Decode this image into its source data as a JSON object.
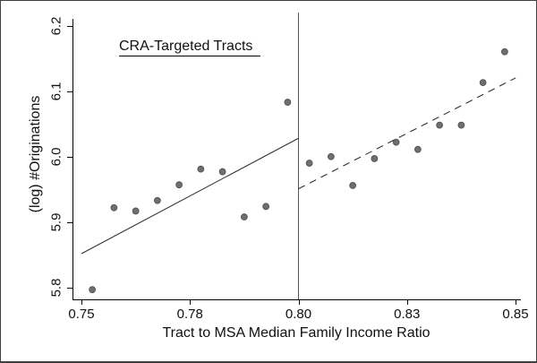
{
  "figure": {
    "annotation": "CRA-Targeted Tracts",
    "x_axis": {
      "label": "Tract to MSA Median Family Income Ratio"
    },
    "y_axis": {
      "label": "(log) #Originations"
    }
  },
  "chart_data": {
    "type": "scatter",
    "title": "CRA-Targeted Tracts",
    "xlabel": "Tract to MSA Median Family Income Ratio",
    "ylabel": "(log) #Originations",
    "xlim": [
      0.748,
      0.851
    ],
    "ylim": [
      5.78,
      6.22
    ],
    "x_ticks": [
      0.75,
      0.775,
      0.8,
      0.825,
      0.85
    ],
    "x_tick_labels": [
      "0.75",
      "0.78",
      "0.80",
      "0.83",
      "0.85"
    ],
    "y_ticks": [
      5.8,
      5.9,
      6.0,
      6.1,
      6.2
    ],
    "y_tick_labels": [
      "5.8",
      "5.9",
      "6.0",
      "6.1",
      "6.2"
    ],
    "grid": "off",
    "legend": "none",
    "cutoff_line_x": 0.8,
    "series": [
      {
        "name": "binned-scatter-left-of-cutoff",
        "type": "scatter",
        "points": [
          [
            0.7525,
            5.797
          ],
          [
            0.7575,
            5.922
          ],
          [
            0.7625,
            5.917
          ],
          [
            0.7675,
            5.933
          ],
          [
            0.7725,
            5.957
          ],
          [
            0.7775,
            5.981
          ],
          [
            0.7825,
            5.977
          ],
          [
            0.7875,
            5.908
          ],
          [
            0.7925,
            5.924
          ],
          [
            0.7975,
            6.083
          ]
        ]
      },
      {
        "name": "binned-scatter-right-of-cutoff",
        "type": "scatter",
        "points": [
          [
            0.8025,
            5.99
          ],
          [
            0.8075,
            6.0
          ],
          [
            0.8125,
            5.956
          ],
          [
            0.8175,
            5.997
          ],
          [
            0.8225,
            6.022
          ],
          [
            0.8275,
            6.011
          ],
          [
            0.8325,
            6.048
          ],
          [
            0.8375,
            6.048
          ],
          [
            0.8425,
            6.113
          ],
          [
            0.8475,
            6.16
          ]
        ]
      },
      {
        "name": "linear-fit-left-of-cutoff",
        "type": "line",
        "style": "solid",
        "from": [
          0.75,
          5.852
        ],
        "to": [
          0.8,
          6.028
        ]
      },
      {
        "name": "linear-fit-right-of-cutoff",
        "type": "line",
        "style": "dashed",
        "from": [
          0.8,
          5.951
        ],
        "to": [
          0.85,
          6.12
        ]
      }
    ],
    "colors": {
      "point_fill": "#6f6f6f",
      "point_stroke": "#565656",
      "fit_line": "#333333",
      "cutoff_line": "#555555",
      "axis": "#000000"
    }
  }
}
